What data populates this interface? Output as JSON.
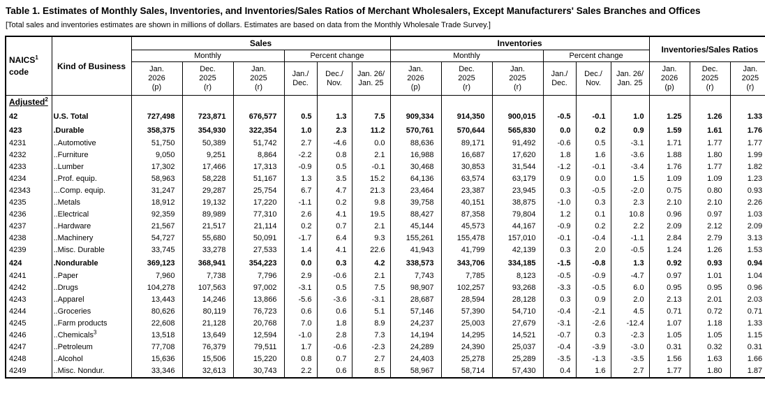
{
  "page": {
    "title": "Table 1.  Estimates of Monthly Sales, Inventories, and Inventories/Sales Ratios of Merchant Wholesalers, Except Manufacturers' Sales Branches and Offices",
    "note": "[Total sales and inventories estimates are shown in millions of dollars.  Estimates are based on data from the Monthly Wholesale Trade Survey.]"
  },
  "table": {
    "headers": {
      "naics_label": "NAICS",
      "naics_sup": "1",
      "naics_sub": "code",
      "kind_label": "Kind of Business",
      "sales_label": "Sales",
      "inventories_label": "Inventories",
      "ratios_label": "Inventories/Sales Ratios",
      "monthly_label": "Monthly",
      "pct_label": "Percent change",
      "period_cols": [
        {
          "lines": [
            "Jan.",
            "2026",
            "(p)"
          ]
        },
        {
          "lines": [
            "Dec.",
            "2025",
            "(r)"
          ]
        },
        {
          "lines": [
            "Jan.",
            "2025",
            "(r)"
          ]
        }
      ],
      "pct_cols": [
        {
          "lines": [
            "Jan./",
            "Dec."
          ]
        },
        {
          "lines": [
            "Dec./",
            "Nov."
          ]
        },
        {
          "lines": [
            "Jan. 26/",
            "Jan. 25"
          ]
        }
      ]
    },
    "rows": [
      {
        "section": true,
        "naics": "Adjusted",
        "sup": "2",
        "kind": "",
        "values": [
          "",
          "",
          "",
          "",
          "",
          "",
          "",
          "",
          "",
          "",
          "",
          "",
          "",
          "",
          ""
        ]
      },
      {
        "naics": "42",
        "kind": "U.S. Total",
        "bold": true,
        "values": [
          "727,498",
          "723,871",
          "676,577",
          "0.5",
          "1.3",
          "7.5",
          "909,334",
          "914,350",
          "900,015",
          "-0.5",
          "-0.1",
          "1.0",
          "1.25",
          "1.26",
          "1.33"
        ]
      },
      {
        "naics": "423",
        "kind": ".Durable",
        "bold": true,
        "values": [
          "358,375",
          "354,930",
          "322,354",
          "1.0",
          "2.3",
          "11.2",
          "570,761",
          "570,644",
          "565,830",
          "0.0",
          "0.2",
          "0.9",
          "1.59",
          "1.61",
          "1.76"
        ]
      },
      {
        "naics": "4231",
        "kind": "..Automotive",
        "values": [
          "51,750",
          "50,389",
          "51,742",
          "2.7",
          "-4.6",
          "0.0",
          "88,636",
          "89,171",
          "91,492",
          "-0.6",
          "0.5",
          "-3.1",
          "1.71",
          "1.77",
          "1.77"
        ]
      },
      {
        "naics": "4232",
        "kind": "..Furniture",
        "values": [
          "9,050",
          "9,251",
          "8,864",
          "-2.2",
          "0.8",
          "2.1",
          "16,988",
          "16,687",
          "17,620",
          "1.8",
          "1.6",
          "-3.6",
          "1.88",
          "1.80",
          "1.99"
        ]
      },
      {
        "naics": "4233",
        "kind": "..Lumber",
        "values": [
          "17,302",
          "17,466",
          "17,313",
          "-0.9",
          "0.5",
          "-0.1",
          "30,468",
          "30,853",
          "31,544",
          "-1.2",
          "-0.1",
          "-3.4",
          "1.76",
          "1.77",
          "1.82"
        ]
      },
      {
        "naics": "4234",
        "kind": "..Prof. equip.",
        "values": [
          "58,963",
          "58,228",
          "51,167",
          "1.3",
          "3.5",
          "15.2",
          "64,136",
          "63,574",
          "63,179",
          "0.9",
          "0.0",
          "1.5",
          "1.09",
          "1.09",
          "1.23"
        ]
      },
      {
        "naics": "42343",
        "kind": "...Comp. equip.",
        "values": [
          "31,247",
          "29,287",
          "25,754",
          "6.7",
          "4.7",
          "21.3",
          "23,464",
          "23,387",
          "23,945",
          "0.3",
          "-0.5",
          "-2.0",
          "0.75",
          "0.80",
          "0.93"
        ]
      },
      {
        "naics": "4235",
        "kind": "..Metals",
        "values": [
          "18,912",
          "19,132",
          "17,220",
          "-1.1",
          "0.2",
          "9.8",
          "39,758",
          "40,151",
          "38,875",
          "-1.0",
          "0.3",
          "2.3",
          "2.10",
          "2.10",
          "2.26"
        ]
      },
      {
        "naics": "4236",
        "kind": "..Electrical",
        "values": [
          "92,359",
          "89,989",
          "77,310",
          "2.6",
          "4.1",
          "19.5",
          "88,427",
          "87,358",
          "79,804",
          "1.2",
          "0.1",
          "10.8",
          "0.96",
          "0.97",
          "1.03"
        ]
      },
      {
        "naics": "4237",
        "kind": "..Hardware",
        "values": [
          "21,567",
          "21,517",
          "21,114",
          "0.2",
          "0.7",
          "2.1",
          "45,144",
          "45,573",
          "44,167",
          "-0.9",
          "0.2",
          "2.2",
          "2.09",
          "2.12",
          "2.09"
        ]
      },
      {
        "naics": "4238",
        "kind": "..Machinery",
        "values": [
          "54,727",
          "55,680",
          "50,091",
          "-1.7",
          "6.4",
          "9.3",
          "155,261",
          "155,478",
          "157,010",
          "-0.1",
          "-0.4",
          "-1.1",
          "2.84",
          "2.79",
          "3.13"
        ]
      },
      {
        "naics": "4239",
        "kind": "..Misc. Durable",
        "values": [
          "33,745",
          "33,278",
          "27,533",
          "1.4",
          "4.1",
          "22.6",
          "41,943",
          "41,799",
          "42,139",
          "0.3",
          "2.0",
          "-0.5",
          "1.24",
          "1.26",
          "1.53"
        ]
      },
      {
        "naics": "424",
        "kind": ".Nondurable",
        "bold": true,
        "values": [
          "369,123",
          "368,941",
          "354,223",
          "0.0",
          "0.3",
          "4.2",
          "338,573",
          "343,706",
          "334,185",
          "-1.5",
          "-0.8",
          "1.3",
          "0.92",
          "0.93",
          "0.94"
        ]
      },
      {
        "naics": "4241",
        "kind": "..Paper",
        "values": [
          "7,960",
          "7,738",
          "7,796",
          "2.9",
          "-0.6",
          "2.1",
          "7,743",
          "7,785",
          "8,123",
          "-0.5",
          "-0.9",
          "-4.7",
          "0.97",
          "1.01",
          "1.04"
        ]
      },
      {
        "naics": "4242",
        "kind": "..Drugs",
        "values": [
          "104,278",
          "107,563",
          "97,002",
          "-3.1",
          "0.5",
          "7.5",
          "98,907",
          "102,257",
          "93,268",
          "-3.3",
          "-0.5",
          "6.0",
          "0.95",
          "0.95",
          "0.96"
        ]
      },
      {
        "naics": "4243",
        "kind": "..Apparel",
        "values": [
          "13,443",
          "14,246",
          "13,866",
          "-5.6",
          "-3.6",
          "-3.1",
          "28,687",
          "28,594",
          "28,128",
          "0.3",
          "0.9",
          "2.0",
          "2.13",
          "2.01",
          "2.03"
        ]
      },
      {
        "naics": "4244",
        "kind": "..Groceries",
        "values": [
          "80,626",
          "80,119",
          "76,723",
          "0.6",
          "0.6",
          "5.1",
          "57,146",
          "57,390",
          "54,710",
          "-0.4",
          "-2.1",
          "4.5",
          "0.71",
          "0.72",
          "0.71"
        ]
      },
      {
        "naics": "4245",
        "kind": "..Farm products",
        "values": [
          "22,608",
          "21,128",
          "20,768",
          "7.0",
          "1.8",
          "8.9",
          "24,237",
          "25,003",
          "27,679",
          "-3.1",
          "-2.6",
          "-12.4",
          "1.07",
          "1.18",
          "1.33"
        ]
      },
      {
        "naics": "4246",
        "kind": "..Chemicals",
        "kind_sup": "3",
        "values": [
          "13,518",
          "13,649",
          "12,594",
          "-1.0",
          "2.8",
          "7.3",
          "14,194",
          "14,295",
          "14,521",
          "-0.7",
          "0.3",
          "-2.3",
          "1.05",
          "1.05",
          "1.15"
        ]
      },
      {
        "naics": "4247",
        "kind": "..Petroleum",
        "values": [
          "77,708",
          "76,379",
          "79,511",
          "1.7",
          "-0.6",
          "-2.3",
          "24,289",
          "24,390",
          "25,037",
          "-0.4",
          "-3.9",
          "-3.0",
          "0.31",
          "0.32",
          "0.31"
        ]
      },
      {
        "naics": "4248",
        "kind": "..Alcohol",
        "values": [
          "15,636",
          "15,506",
          "15,220",
          "0.8",
          "0.7",
          "2.7",
          "24,403",
          "25,278",
          "25,289",
          "-3.5",
          "-1.3",
          "-3.5",
          "1.56",
          "1.63",
          "1.66"
        ]
      },
      {
        "naics": "4249",
        "kind": "..Misc. Nondur.",
        "values": [
          "33,346",
          "32,613",
          "30,743",
          "2.2",
          "0.6",
          "8.5",
          "58,967",
          "58,714",
          "57,430",
          "0.4",
          "1.6",
          "2.7",
          "1.77",
          "1.80",
          "1.87"
        ]
      }
    ]
  }
}
